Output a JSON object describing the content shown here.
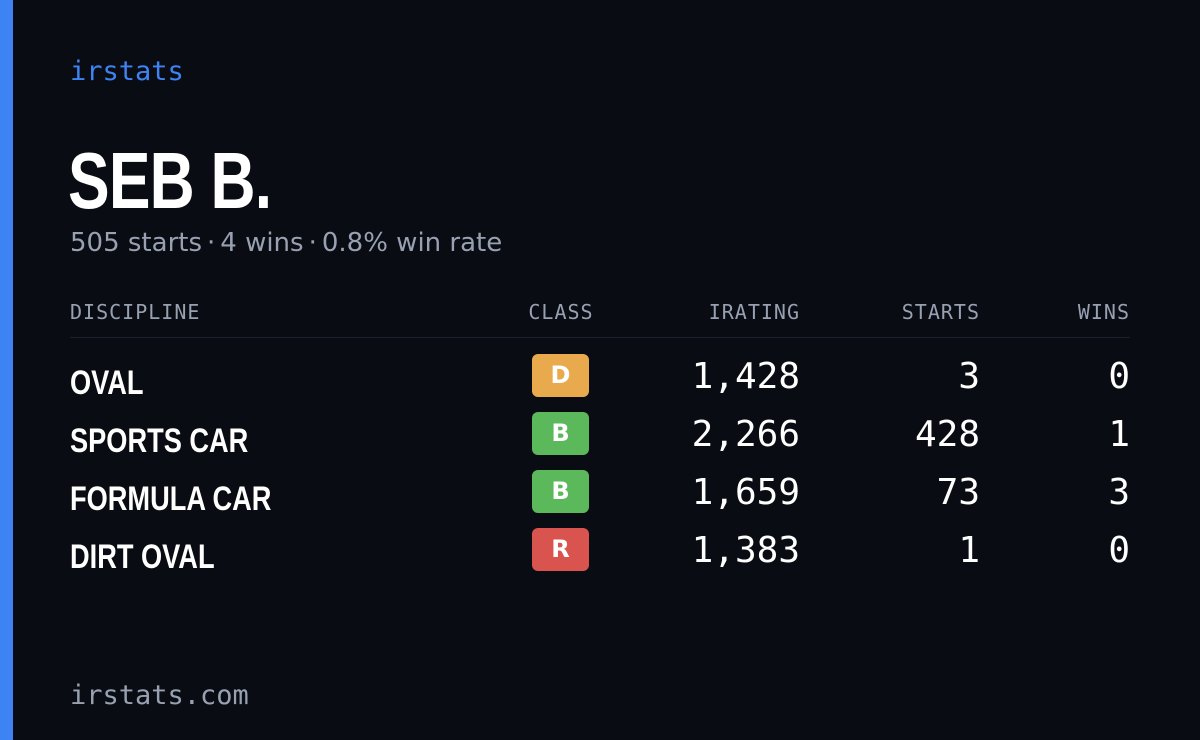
{
  "brand": "irstats",
  "driver": {
    "name": "SEB B.",
    "starts_text": "505 starts",
    "wins_text": "4 wins",
    "win_rate_text": "0.8% win rate",
    "separator": "·"
  },
  "table": {
    "headers": {
      "discipline": "DISCIPLINE",
      "class": "CLASS",
      "irating": "IRATING",
      "starts": "STARTS",
      "wins": "WINS"
    },
    "rows": [
      {
        "discipline": "OVAL",
        "class": "D",
        "class_color": "#e9a94d",
        "irating": "1,428",
        "starts": "3",
        "wins": "0"
      },
      {
        "discipline": "SPORTS CAR",
        "class": "B",
        "class_color": "#5bb85b",
        "irating": "2,266",
        "starts": "428",
        "wins": "1"
      },
      {
        "discipline": "FORMULA CAR",
        "class": "B",
        "class_color": "#5bb85b",
        "irating": "1,659",
        "starts": "73",
        "wins": "3"
      },
      {
        "discipline": "DIRT OVAL",
        "class": "R",
        "class_color": "#d9534f",
        "irating": "1,383",
        "starts": "1",
        "wins": "0"
      }
    ]
  },
  "footer": "irstats.com",
  "colors": {
    "accent": "#3d83f3",
    "background": "#0a0c13",
    "muted_text": "#98a1b1"
  }
}
